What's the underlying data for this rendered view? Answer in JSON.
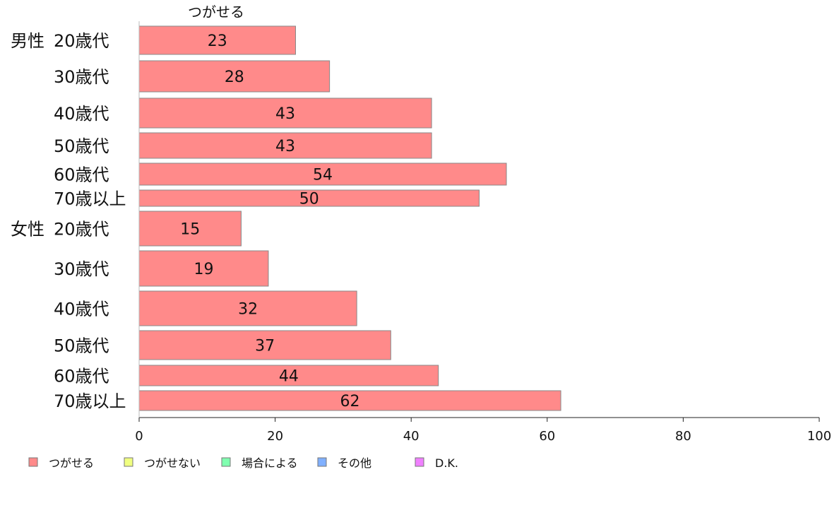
{
  "chart_data": {
    "type": "bar",
    "orientation": "horizontal",
    "series_header": "つがせる",
    "groups": [
      "男性",
      "女性"
    ],
    "categories": [
      {
        "group": "男性",
        "label": "20歳代"
      },
      {
        "group": "",
        "label": "30歳代"
      },
      {
        "group": "",
        "label": "40歳代"
      },
      {
        "group": "",
        "label": "50歳代"
      },
      {
        "group": "",
        "label": "60歳代"
      },
      {
        "group": "",
        "label": "70歳以上"
      },
      {
        "group": "女性",
        "label": "20歳代"
      },
      {
        "group": "",
        "label": "30歳代"
      },
      {
        "group": "",
        "label": "40歳代"
      },
      {
        "group": "",
        "label": "50歳代"
      },
      {
        "group": "",
        "label": "60歳代"
      },
      {
        "group": "",
        "label": "70歳以上"
      }
    ],
    "series": [
      {
        "name": "つがせる",
        "color": "#ff8a8a",
        "values": [
          23,
          28,
          43,
          43,
          54,
          50,
          15,
          19,
          32,
          37,
          44,
          62
        ]
      }
    ],
    "xlim": [
      0,
      100
    ],
    "xticks": [
      0,
      20,
      40,
      60,
      80,
      100
    ],
    "grid": false,
    "legend_position": "bottom",
    "legend": [
      {
        "label": "つがせる",
        "color": "#ff8a8a"
      },
      {
        "label": "つがせない",
        "color": "#f0ff80"
      },
      {
        "label": "場合による",
        "color": "#80ffb0"
      },
      {
        "label": "その他",
        "color": "#80b0ff"
      },
      {
        "label": "D.K.",
        "color": "#f080ff"
      }
    ]
  }
}
